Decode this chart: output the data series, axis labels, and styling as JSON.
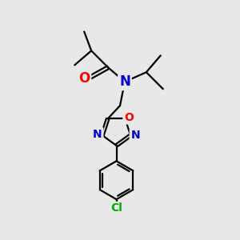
{
  "background_color": "#e8e8e8",
  "bond_color": "#000000",
  "nitrogen_color": "#0000cd",
  "oxygen_color": "#ff0000",
  "chlorine_color": "#00aa00",
  "line_width": 1.6,
  "font_size_atoms": 11,
  "fig_width": 3.0,
  "fig_height": 3.0,
  "dpi": 100,
  "xlim": [
    0,
    10
  ],
  "ylim": [
    0,
    10
  ]
}
